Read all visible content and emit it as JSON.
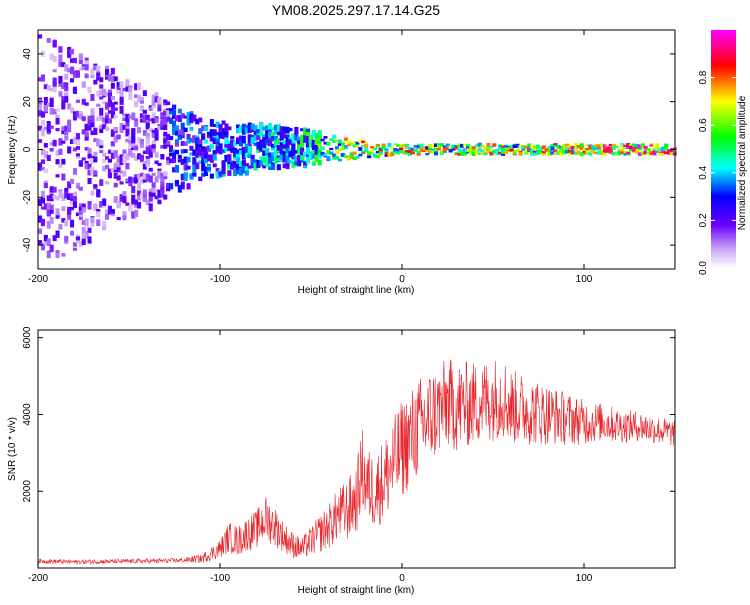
{
  "title": "YM08.2025.297.17.14.G25",
  "colors": {
    "trace": "#e8262c",
    "axis": "#000000",
    "background": "#ffffff"
  },
  "chart_data": [
    {
      "type": "heatmap",
      "title": "YM08.2025.297.17.14.G25",
      "xlabel": "Height of straight line (km)",
      "ylabel": "Frequency (Hz)",
      "xlim": [
        -200,
        150
      ],
      "ylim": [
        -50,
        50
      ],
      "xticks": [
        -200,
        -100,
        0,
        100
      ],
      "yticks": [
        -40,
        -20,
        0,
        20,
        40
      ],
      "xtick_labels": [
        "-200",
        "-100",
        "0",
        "100"
      ],
      "ytick_labels": [
        "-40",
        "-20",
        "0",
        "20",
        "40"
      ],
      "colorbar": {
        "label": "Normalized spectral amplitude",
        "range": [
          0,
          1
        ],
        "ticks": [
          0.0,
          0.2,
          0.4,
          0.6,
          0.8
        ],
        "tick_labels": [
          "0.0",
          "0.2",
          "0.4",
          "0.6",
          "0.8"
        ]
      },
      "description_points": [
        {
          "x": -200,
          "f_center": 0,
          "f_spread": 50,
          "amp": 0.15
        },
        {
          "x": -110,
          "f_center": 0,
          "f_spread": 12,
          "amp": 0.35
        },
        {
          "x": -60,
          "f_center": 1,
          "f_spread": 8,
          "amp": 0.45
        },
        {
          "x": -30,
          "f_center": 0,
          "f_spread": 4,
          "amp": 0.7
        },
        {
          "x": 0,
          "f_center": 0,
          "f_spread": 2,
          "amp": 0.75
        },
        {
          "x": 50,
          "f_center": 0,
          "f_spread": 2,
          "amp": 0.7
        },
        {
          "x": 100,
          "f_center": 0,
          "f_spread": 2,
          "amp": 0.85
        },
        {
          "x": 150,
          "f_center": 0,
          "f_spread": 2,
          "amp": 0.9
        }
      ]
    },
    {
      "type": "line",
      "xlabel": "Height of straight line (km)",
      "ylabel": "SNR (10 * v/v)",
      "xlim": [
        -200,
        150
      ],
      "ylim": [
        0,
        6200
      ],
      "xticks": [
        -200,
        -100,
        0,
        100
      ],
      "yticks": [
        2000,
        4000,
        6000
      ],
      "xtick_labels": [
        "-200",
        "-100",
        "0",
        "100"
      ],
      "ytick_labels": [
        "2000",
        "4000",
        "6000"
      ],
      "series": [
        {
          "name": "SNR",
          "x": [
            -200,
            -180,
            -160,
            -140,
            -120,
            -110,
            -100,
            -95,
            -90,
            -85,
            -80,
            -75,
            -70,
            -65,
            -60,
            -55,
            -50,
            -45,
            -40,
            -35,
            -30,
            -25,
            -22,
            -20,
            -15,
            -10,
            -5,
            0,
            5,
            10,
            15,
            20,
            25,
            30,
            40,
            50,
            55,
            60,
            70,
            80,
            90,
            100,
            110,
            120,
            130,
            140,
            150
          ],
          "y": [
            180,
            160,
            170,
            180,
            200,
            250,
            500,
            800,
            700,
            900,
            1000,
            1300,
            1100,
            800,
            600,
            500,
            700,
            900,
            1100,
            1400,
            1500,
            1800,
            2600,
            2200,
            2000,
            2300,
            2700,
            3100,
            3400,
            3700,
            3900,
            4100,
            4300,
            4200,
            4300,
            4400,
            4500,
            4200,
            4100,
            4000,
            3900,
            3800,
            3800,
            3700,
            3700,
            3600,
            3500
          ],
          "noise": [
            60,
            60,
            60,
            60,
            60,
            120,
            250,
            400,
            400,
            450,
            500,
            600,
            550,
            400,
            350,
            300,
            400,
            500,
            600,
            700,
            800,
            900,
            1100,
            1000,
            1000,
            1100,
            1200,
            1300,
            1300,
            1300,
            1300,
            1200,
            1200,
            1200,
            1100,
            1100,
            1100,
            1000,
            900,
            800,
            700,
            600,
            500,
            450,
            400,
            380,
            350
          ]
        }
      ]
    }
  ]
}
